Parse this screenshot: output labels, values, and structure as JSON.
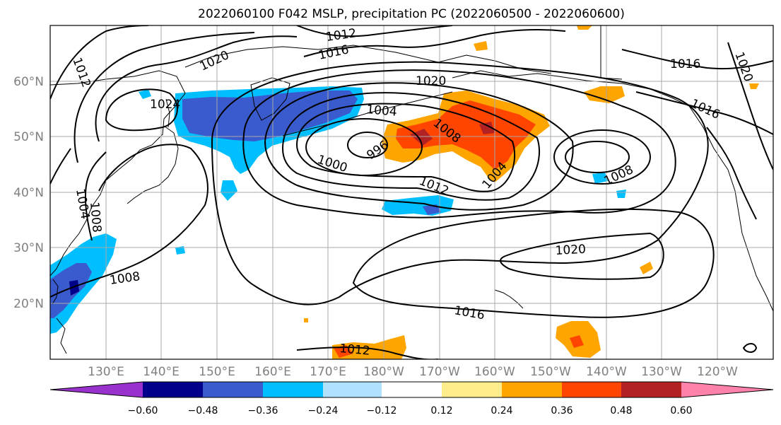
{
  "title": "2022060100 F042 MSLP, precipitation PC (2022060500 - 2022060600)",
  "lat_labels": [
    "60°N",
    "50°N",
    "40°N",
    "30°N",
    "20°N"
  ],
  "lon_labels": [
    "130°E",
    "140°E",
    "150°E",
    "160°E",
    "170°E",
    "180°W",
    "170°W",
    "160°W",
    "150°W",
    "140°W",
    "130°W",
    "120°W"
  ],
  "isobar_labels": [
    "1012",
    "1016",
    "1020",
    "1012",
    "1024",
    "1020",
    "1004",
    "1008",
    "996",
    "1000",
    "1012",
    "1004",
    "1008",
    "1016",
    "1016",
    "1020",
    "1004",
    "1008",
    "1008",
    "1020",
    "1016",
    "1012"
  ],
  "colorbar": {
    "labels": [
      "−0.60",
      "−0.48",
      "−0.36",
      "−0.24",
      "−0.12",
      "0.12",
      "0.24",
      "0.36",
      "0.48",
      "0.60"
    ],
    "colors": [
      "#9932cc",
      "#00008b",
      "#3a5bcd",
      "#00bfff",
      "#b0e2ff",
      "#ffffff",
      "#ffec8b",
      "#ffa500",
      "#ff4500",
      "#b22222",
      "#ff82ab"
    ]
  },
  "shading_colors": {
    "neg_strong": "#00008b",
    "neg_mid": "#3a5bcd",
    "neg_light": "#00bfff",
    "pos_light": "#ffa500",
    "pos_mid": "#ff4500",
    "pos_strong": "#b22222",
    "pos_pale": "#ffec8b"
  }
}
